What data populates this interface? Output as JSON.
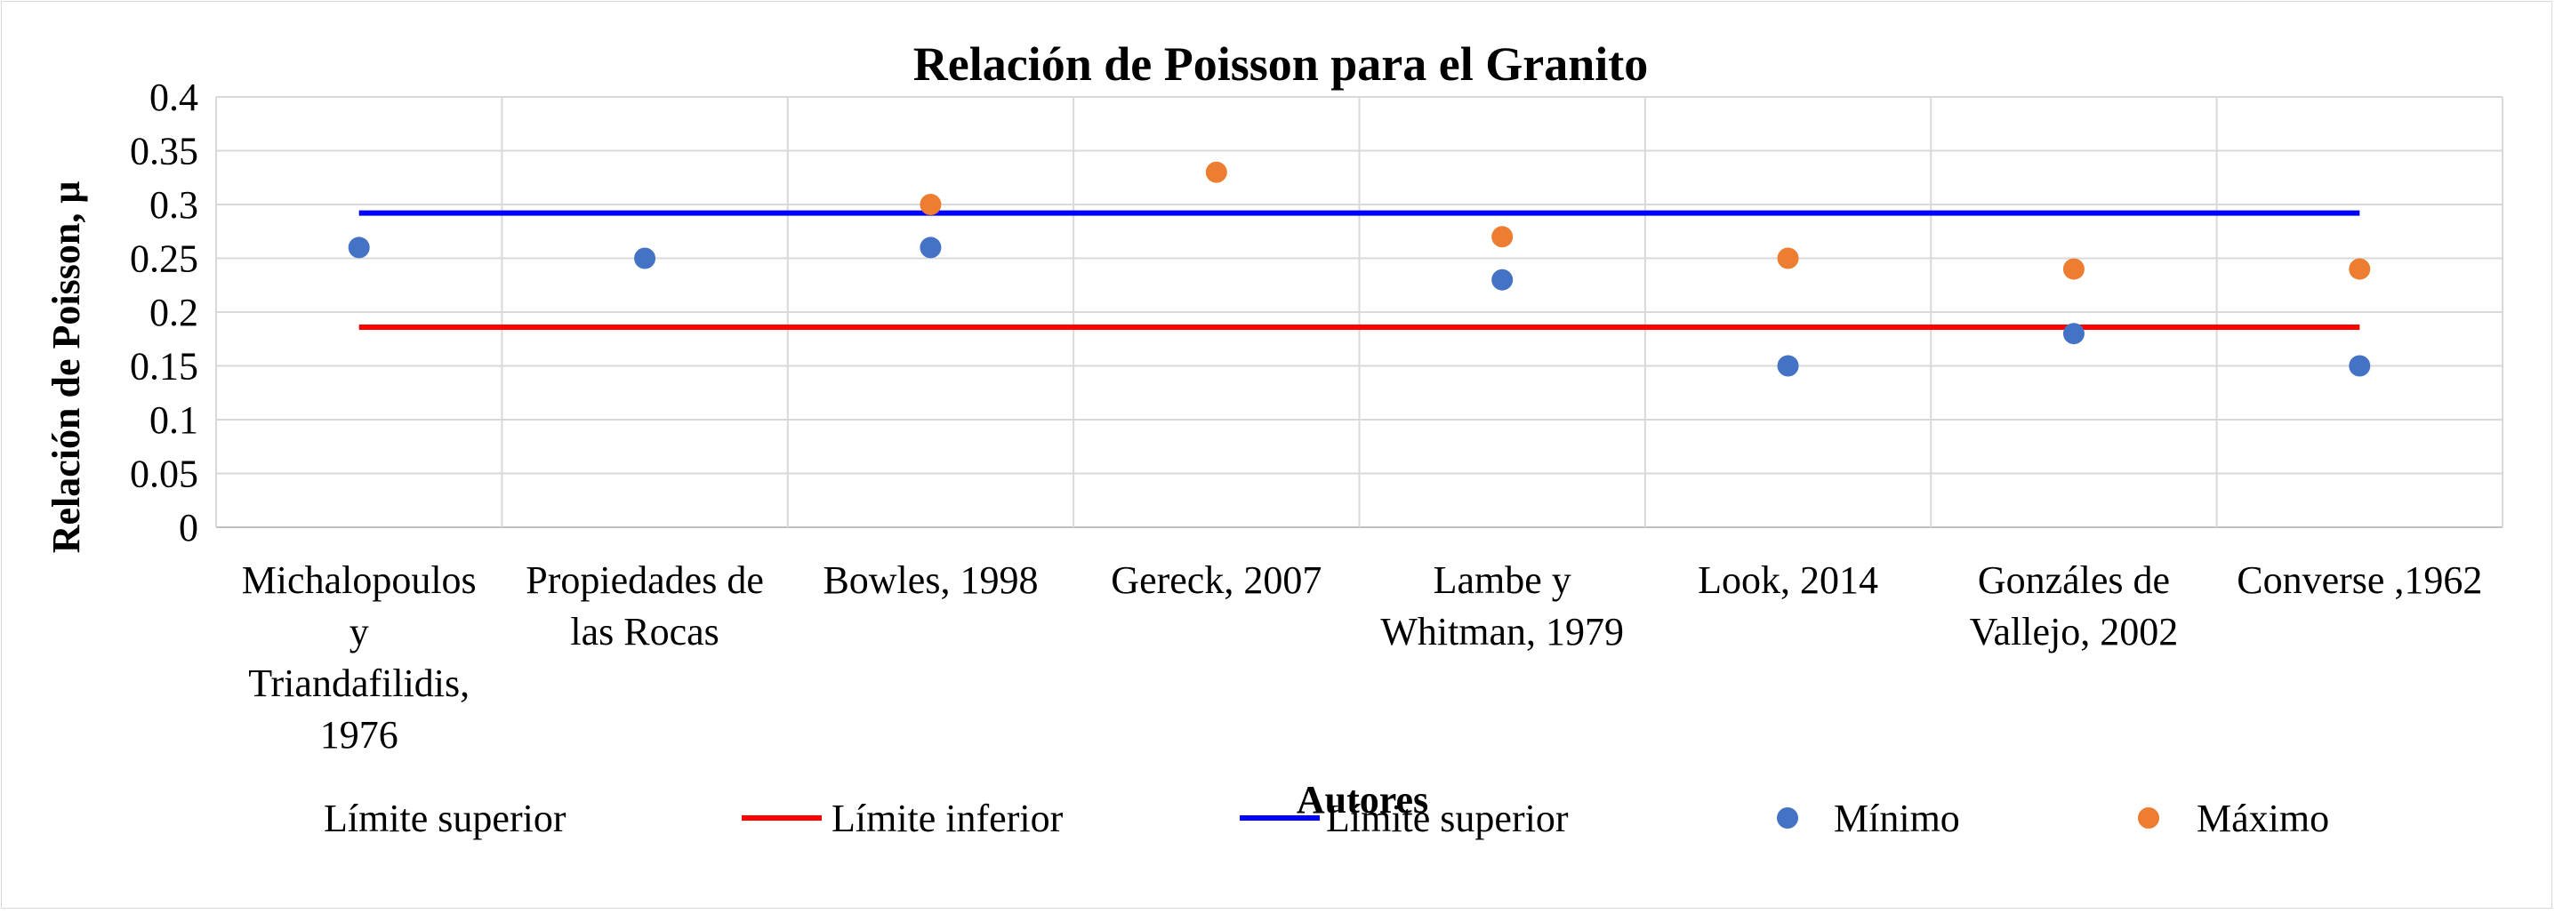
{
  "chart_data": {
    "type": "scatter",
    "title": "Relación de Poisson para el Granito",
    "xlabel": "Autores",
    "ylabel": "Relación de Poisson, μ",
    "ylim": [
      0,
      0.4
    ],
    "yticks": [
      "0",
      "0.05",
      "0.1",
      "0.15",
      "0.2",
      "0.25",
      "0.3",
      "0.35",
      "0.4"
    ],
    "grid": true,
    "legend_position": "bottom",
    "categories": [
      [
        "Michalopoulos",
        "y",
        "Triandafilidis,",
        "1976"
      ],
      [
        "Propiedades de",
        "las Rocas"
      ],
      [
        "Bowles, 1998"
      ],
      [
        "Gereck, 2007"
      ],
      [
        "Lambe y",
        "Whitman, 1979"
      ],
      [
        "Look, 2014"
      ],
      [
        "Gonzáles de",
        "Vallejo, 2002"
      ],
      [
        "Converse ,1962"
      ]
    ],
    "series": [
      {
        "name": "Mínimo",
        "kind": "scatter",
        "color": "#4472c4",
        "values": [
          0.26,
          0.25,
          0.26,
          null,
          0.23,
          0.15,
          0.18,
          0.15
        ]
      },
      {
        "name": "Máximo",
        "kind": "scatter",
        "color": "#ed7d31",
        "values": [
          null,
          null,
          0.3,
          0.33,
          0.27,
          0.25,
          0.24,
          0.24
        ]
      },
      {
        "name": "Límite  inferior",
        "kind": "line",
        "color": "#ff0000",
        "value": 0.186
      },
      {
        "name": "Límite  superior",
        "kind": "line",
        "color": "#0000ff",
        "value": 0.292
      }
    ],
    "legend": [
      {
        "label": "Límite  superior",
        "marker": "none",
        "color": ""
      },
      {
        "label": "Límite  inferior",
        "marker": "line",
        "color": "#ff0000"
      },
      {
        "label": "Límite  superior",
        "marker": "line",
        "color": "#0000ff"
      },
      {
        "label": "Mínimo",
        "marker": "circle",
        "color": "#4472c4"
      },
      {
        "label": "Máximo",
        "marker": "circle",
        "color": "#ed7d31"
      }
    ]
  }
}
